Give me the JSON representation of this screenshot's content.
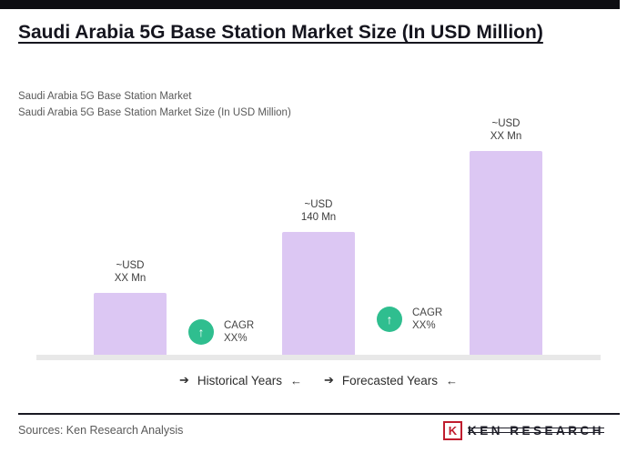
{
  "page": {
    "title": "Saudi Arabia 5G Base Station Market Size (In USD Million)",
    "subtitle1": "Saudi Arabia 5G Base Station Market",
    "subtitle2": "Saudi Arabia 5G Base Station Market Size (In USD Million)",
    "sources": "Sources: Ken Research Analysis",
    "logo": {
      "k": "K",
      "text": "KEN RESEARCH",
      "accent_color": "#c01d2e"
    }
  },
  "chart_data": {
    "type": "bar",
    "title": "Saudi Arabia 5G Base Station Market Size (In USD Million)",
    "xlabel": "",
    "ylabel": "USD Million",
    "bar_color": "#dcc7f3",
    "badge_color": "#2fbe8f",
    "grid": false,
    "legend": "none",
    "bars": [
      {
        "label_line1": "~USD",
        "label_line2": "XX Mn",
        "value_estimate": 70
      },
      {
        "label_line1": "~USD",
        "label_line2": "140 Mn",
        "value_estimate": 140
      },
      {
        "label_line1": "~USD",
        "label_line2": "XX Mn",
        "value_estimate": 232
      }
    ],
    "cagr": [
      {
        "arrow": "↑",
        "label": "CAGR",
        "value": "XX%"
      },
      {
        "arrow": "↑",
        "label": "CAGR",
        "value": "XX%"
      }
    ],
    "period_labels": [
      {
        "prefix": "➔",
        "text": "Historical Years",
        "suffix": "←"
      },
      {
        "prefix": "➔",
        "text": "Forecasted Years",
        "suffix": "←"
      }
    ]
  }
}
